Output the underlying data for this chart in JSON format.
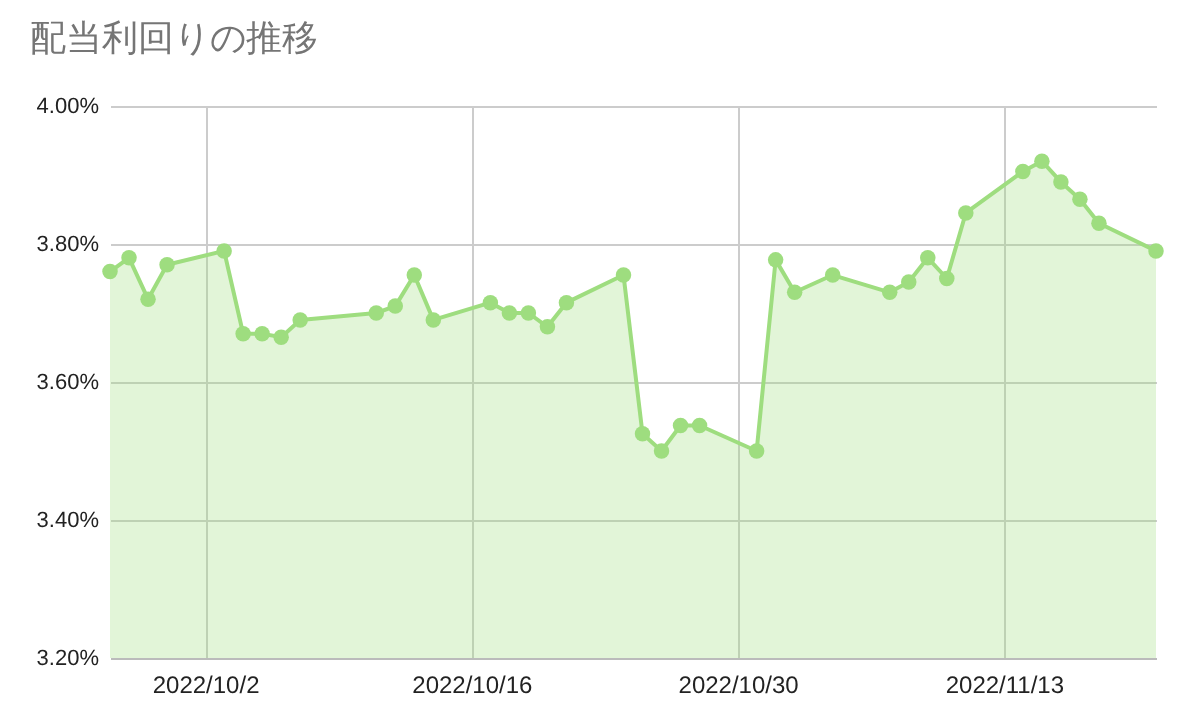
{
  "chart_data": {
    "type": "area",
    "title": "配当利回りの推移",
    "x": [
      "2022-09-27",
      "2022-09-28",
      "2022-09-29",
      "2022-09-30",
      "2022-10-03",
      "2022-10-04",
      "2022-10-05",
      "2022-10-06",
      "2022-10-07",
      "2022-10-11",
      "2022-10-12",
      "2022-10-13",
      "2022-10-14",
      "2022-10-17",
      "2022-10-18",
      "2022-10-19",
      "2022-10-20",
      "2022-10-21",
      "2022-10-24",
      "2022-10-25",
      "2022-10-26",
      "2022-10-27",
      "2022-10-28",
      "2022-10-31",
      "2022-11-01",
      "2022-11-02",
      "2022-11-04",
      "2022-11-07",
      "2022-11-08",
      "2022-11-09",
      "2022-11-10",
      "2022-11-11",
      "2022-11-14",
      "2022-11-15",
      "2022-11-16",
      "2022-11-17",
      "2022-11-18",
      "2022-11-21"
    ],
    "series": [
      {
        "color": "#9edd7f",
        "values": [
          3.76,
          3.78,
          3.72,
          3.77,
          3.79,
          3.67,
          3.67,
          3.665,
          3.69,
          3.7,
          3.71,
          3.755,
          3.69,
          3.715,
          3.7,
          3.7,
          3.68,
          3.715,
          3.755,
          3.525,
          3.5,
          3.537,
          3.537,
          3.5,
          3.777,
          3.73,
          3.755,
          3.73,
          3.745,
          3.78,
          3.75,
          3.845,
          3.905,
          3.92,
          3.89,
          3.865,
          3.83,
          3.79
        ]
      }
    ],
    "xlim": [
      "2022-09-27",
      "2022-11-21"
    ],
    "xticks": [
      {
        "value": "2022-10-02",
        "label": "2022/10/2"
      },
      {
        "value": "2022-10-16",
        "label": "2022/10/16"
      },
      {
        "value": "2022-10-30",
        "label": "2022/10/30"
      },
      {
        "value": "2022-11-13",
        "label": "2022/11/13"
      }
    ],
    "ylim": [
      3.2,
      4.0
    ],
    "yticks": [
      {
        "value": 3.2,
        "label": "3.20%"
      },
      {
        "value": 3.4,
        "label": "3.40%"
      },
      {
        "value": 3.6,
        "label": "3.60%"
      },
      {
        "value": 3.8,
        "label": "3.80%"
      },
      {
        "value": 4.0,
        "label": "4.00%"
      }
    ],
    "grid": true,
    "marker": "circle",
    "line_style": "solid"
  }
}
